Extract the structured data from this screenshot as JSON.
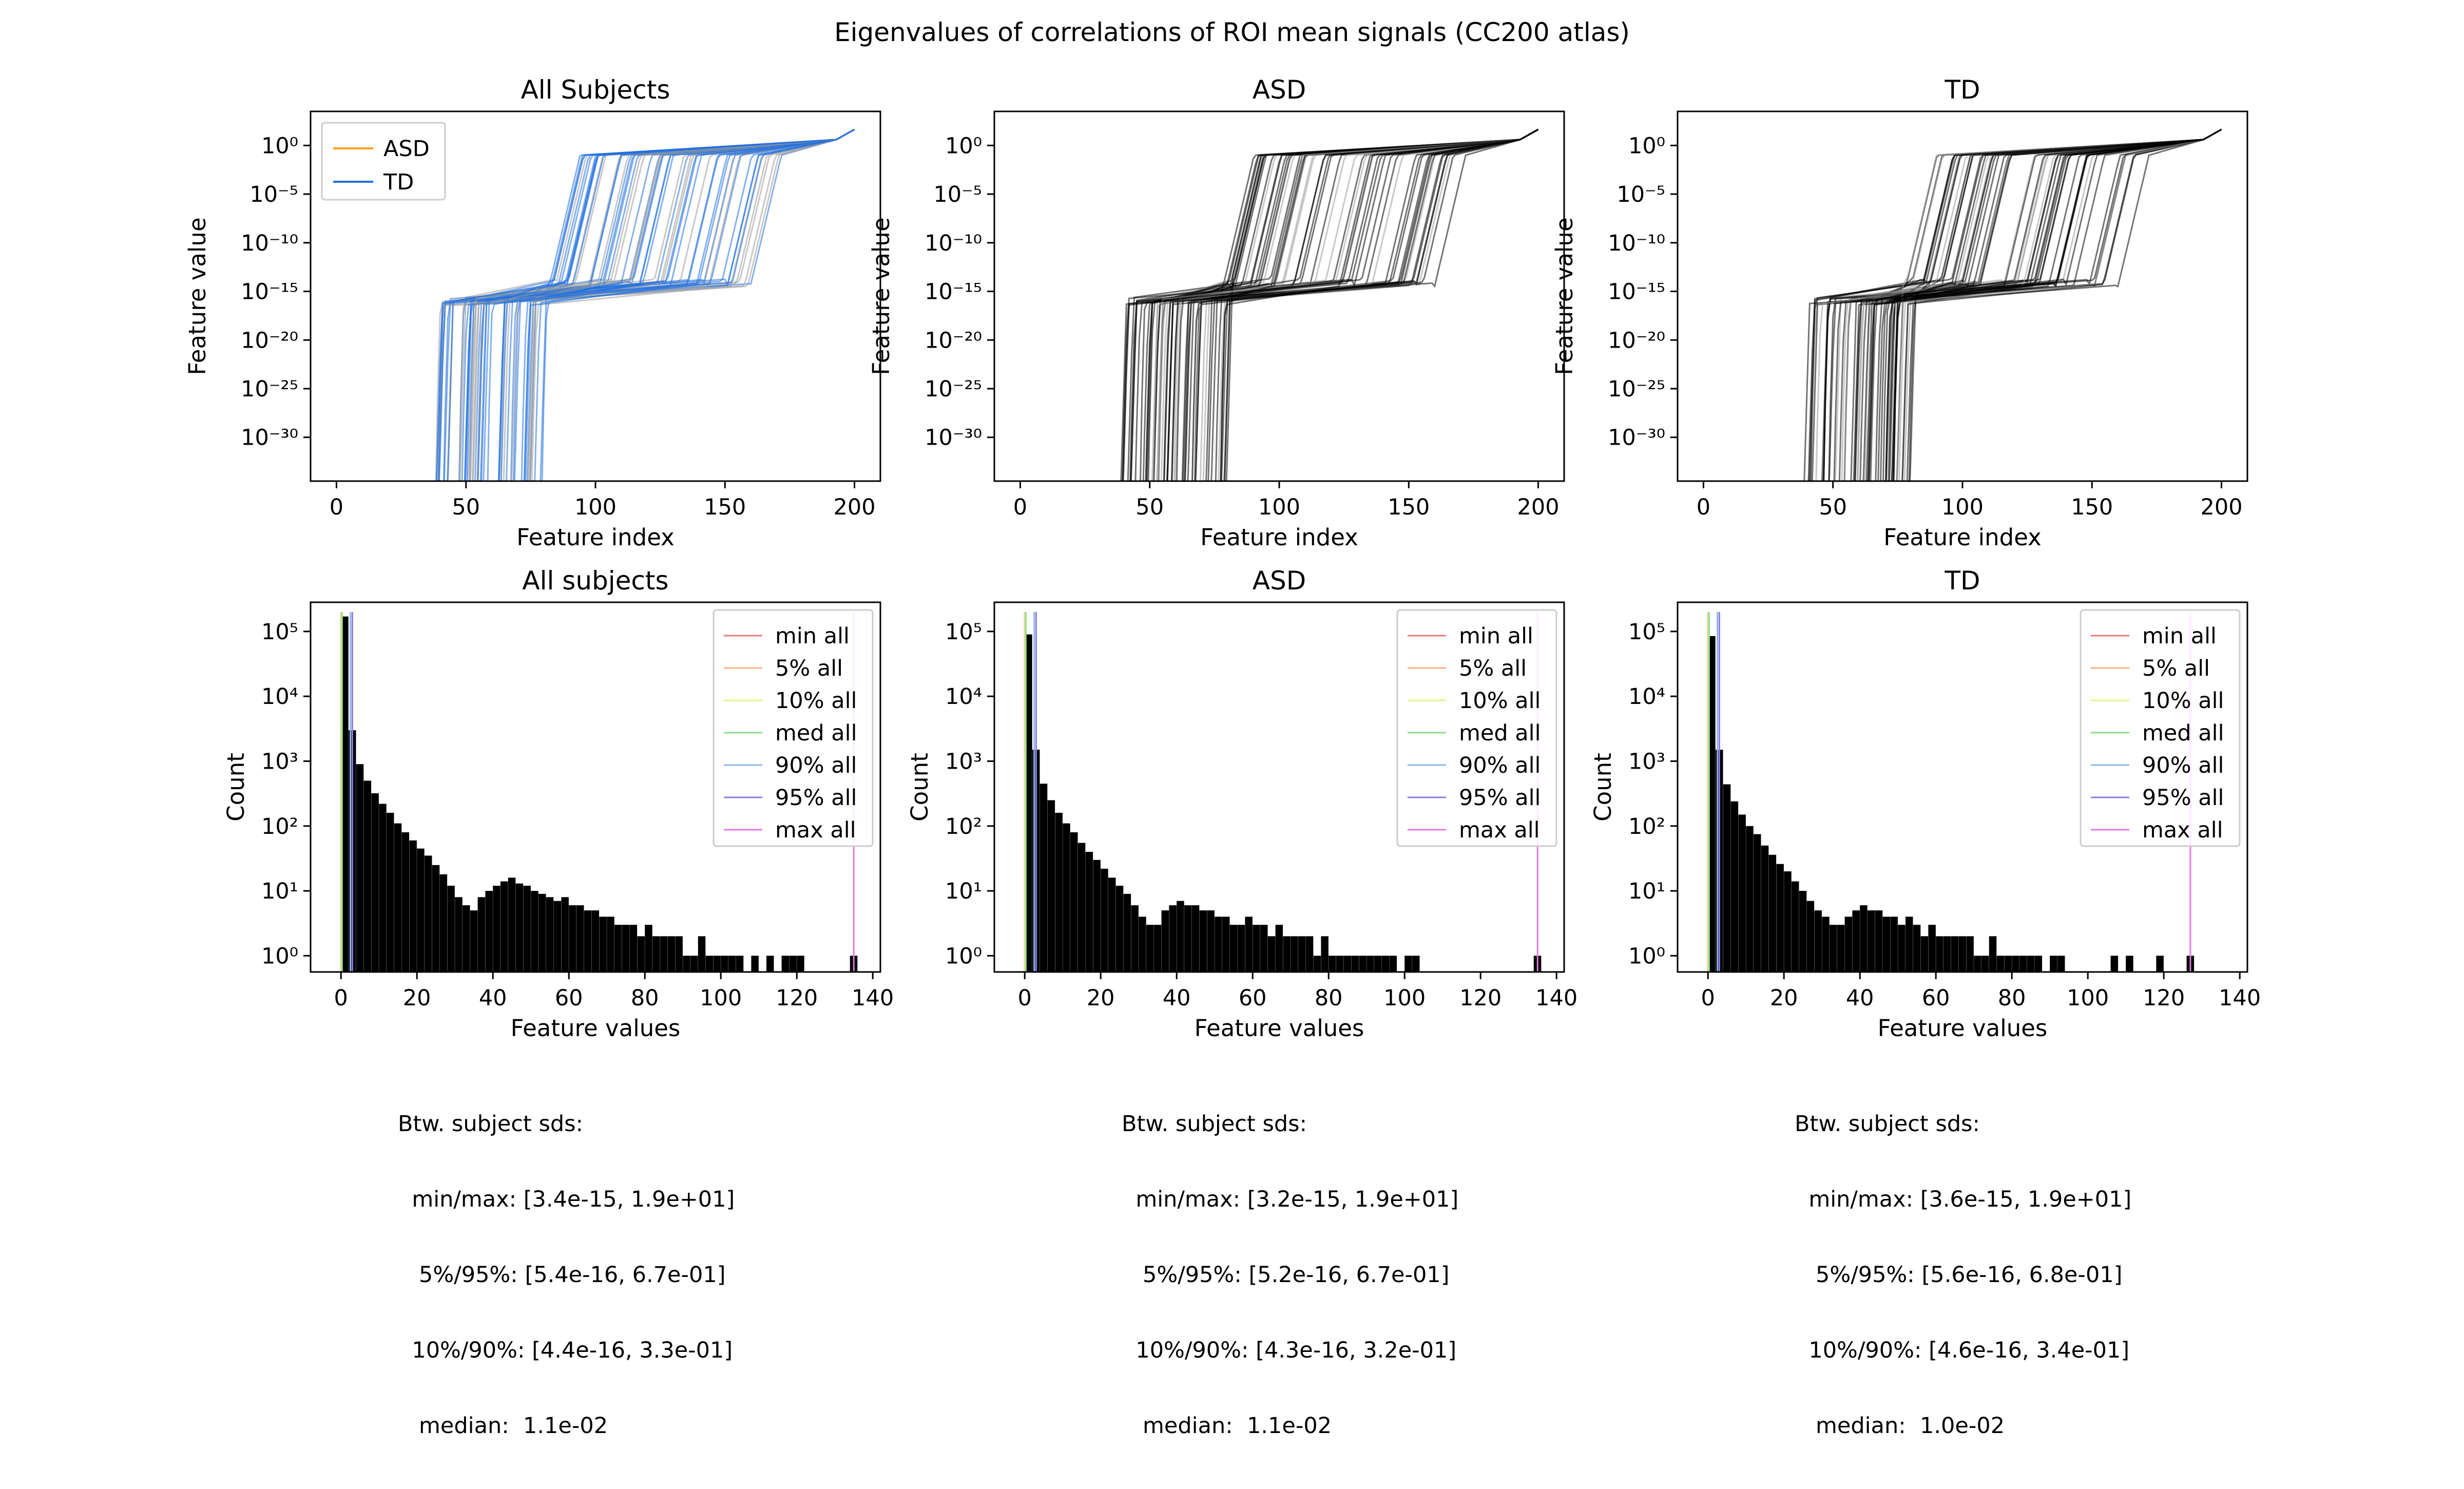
{
  "figure": {
    "title": "Eigenvalues of correlations of ROI mean signals (CC200 atlas)"
  },
  "chart_data": [
    {
      "type": "line",
      "title": "All Subjects",
      "xlabel": "Feature index",
      "ylabel": "Feature value",
      "xlim": [
        -10,
        210
      ],
      "ylim_log10": [
        -34.5,
        3.5
      ],
      "y_scale": "log",
      "x_ticks": [
        "0",
        "50",
        "100",
        "150",
        "200"
      ],
      "y_ticks": [
        "10⁰",
        "10⁻⁵",
        "10⁻¹⁰",
        "10⁻¹⁵",
        "10⁻²⁰",
        "10⁻²⁵",
        "10⁻³⁰"
      ],
      "legend_position": "top-left",
      "series": [
        {
          "name": "ASD",
          "color": "#ff9f1c"
        },
        {
          "name": "TD",
          "color": "#1f6fe0"
        }
      ],
      "curve_shape": {
        "description_points_x": [
          0,
          50,
          75,
          80,
          150,
          160,
          190,
          200
        ],
        "description_points_log10y": [
          -34,
          -15,
          -14.5,
          -14,
          -1,
          0,
          0.5,
          1.5
        ]
      }
    },
    {
      "type": "line",
      "title": "ASD",
      "xlabel": "Feature index",
      "ylabel": "Feature value",
      "xlim": [
        -10,
        210
      ],
      "ylim_log10": [
        -34.5,
        3.5
      ],
      "y_scale": "log",
      "x_ticks": [
        "0",
        "50",
        "100",
        "150",
        "200"
      ],
      "y_ticks": [
        "10⁰",
        "10⁻⁵",
        "10⁻¹⁰",
        "10⁻¹⁵",
        "10⁻²⁰",
        "10⁻²⁵",
        "10⁻³⁰"
      ],
      "series_color": "#000000"
    },
    {
      "type": "line",
      "title": "TD",
      "xlabel": "Feature index",
      "ylabel": "Feature value",
      "xlim": [
        -10,
        210
      ],
      "ylim_log10": [
        -34.5,
        3.5
      ],
      "y_scale": "log",
      "x_ticks": [
        "0",
        "50",
        "100",
        "150",
        "200"
      ],
      "y_ticks": [
        "10⁰",
        "10⁻⁵",
        "10⁻¹⁰",
        "10⁻¹⁵",
        "10⁻²⁰",
        "10⁻²⁵",
        "10⁻³⁰"
      ],
      "series_color": "#000000"
    },
    {
      "type": "bar",
      "title": "All subjects",
      "xlabel": "Feature values",
      "ylabel": "Count",
      "xlim": [
        -8,
        142
      ],
      "ylim_log10": [
        -0.25,
        5.45
      ],
      "y_scale": "log",
      "x_ticks": [
        "0",
        "20",
        "40",
        "60",
        "80",
        "100",
        "120",
        "140"
      ],
      "y_ticks": [
        "10⁵",
        "10⁴",
        "10³",
        "10²",
        "10¹",
        "10⁰"
      ],
      "legend_position": "top-right",
      "legend": [
        {
          "name": "min all",
          "color": "#e07a7a"
        },
        {
          "name": "5% all",
          "color": "#f4b183"
        },
        {
          "name": "10% all",
          "color": "#e6f08a"
        },
        {
          "name": "med all",
          "color": "#8fdc8f"
        },
        {
          "name": "90% all",
          "color": "#8fb4e6"
        },
        {
          "name": "95% all",
          "color": "#8a7fe6"
        },
        {
          "name": "max all",
          "color": "#e07ae0"
        }
      ],
      "markers": [
        {
          "name": "min all",
          "x": 0.0
        },
        {
          "name": "5% all",
          "x": 0.05
        },
        {
          "name": "10% all",
          "x": 0.1
        },
        {
          "name": "med all",
          "x": 0.3
        },
        {
          "name": "90% all",
          "x": 2.5
        },
        {
          "name": "95% all",
          "x": 3.0
        },
        {
          "name": "max all",
          "x": 135.0
        }
      ],
      "bins_x": [
        0,
        2,
        4,
        6,
        8,
        10,
        12,
        14,
        16,
        18,
        20,
        22,
        24,
        26,
        28,
        30,
        32,
        34,
        36,
        38,
        40,
        42,
        44,
        46,
        48,
        50,
        52,
        54,
        56,
        58,
        60,
        62,
        64,
        66,
        68,
        70,
        72,
        74,
        76,
        78,
        80,
        82,
        84,
        86,
        88,
        90,
        92,
        94,
        96,
        98,
        100,
        102,
        104,
        106,
        108,
        110,
        112,
        114,
        116,
        118,
        120,
        122,
        124,
        126,
        128,
        130,
        132,
        134
      ],
      "counts": [
        170000,
        3000,
        900,
        500,
        320,
        220,
        160,
        110,
        80,
        60,
        45,
        35,
        25,
        18,
        12,
        8,
        6,
        5,
        8,
        10,
        12,
        14,
        16,
        13,
        12,
        10,
        9,
        8,
        7,
        8,
        6,
        6,
        5,
        5,
        4,
        4,
        3,
        3,
        3,
        2,
        3,
        2,
        2,
        2,
        2,
        1,
        1,
        2,
        1,
        1,
        1,
        1,
        1,
        0,
        1,
        0,
        1,
        0,
        1,
        1,
        1,
        0,
        0,
        0,
        0,
        0,
        0,
        1
      ]
    },
    {
      "type": "bar",
      "title": "ASD",
      "xlabel": "Feature values",
      "ylabel": "Count",
      "xlim": [
        -8,
        142
      ],
      "ylim_log10": [
        -0.25,
        5.45
      ],
      "y_scale": "log",
      "x_ticks": [
        "0",
        "20",
        "40",
        "60",
        "80",
        "100",
        "120",
        "140"
      ],
      "y_ticks": [
        "10⁵",
        "10⁴",
        "10³",
        "10²",
        "10¹",
        "10⁰"
      ],
      "legend_position": "top-right",
      "legend": [
        {
          "name": "min all",
          "color": "#e07a7a"
        },
        {
          "name": "5% all",
          "color": "#f4b183"
        },
        {
          "name": "10% all",
          "color": "#e6f08a"
        },
        {
          "name": "med all",
          "color": "#8fdc8f"
        },
        {
          "name": "90% all",
          "color": "#8fb4e6"
        },
        {
          "name": "95% all",
          "color": "#8a7fe6"
        },
        {
          "name": "max all",
          "color": "#e07ae0"
        }
      ],
      "markers": [
        {
          "name": "min all",
          "x": 0.0
        },
        {
          "name": "5% all",
          "x": 0.05
        },
        {
          "name": "10% all",
          "x": 0.1
        },
        {
          "name": "med all",
          "x": 0.3
        },
        {
          "name": "90% all",
          "x": 2.5
        },
        {
          "name": "95% all",
          "x": 3.0
        },
        {
          "name": "max all",
          "x": 135.0
        }
      ],
      "bins_x": [
        0,
        2,
        4,
        6,
        8,
        10,
        12,
        14,
        16,
        18,
        20,
        22,
        24,
        26,
        28,
        30,
        32,
        34,
        36,
        38,
        40,
        42,
        44,
        46,
        48,
        50,
        52,
        54,
        56,
        58,
        60,
        62,
        64,
        66,
        68,
        70,
        72,
        74,
        76,
        78,
        80,
        82,
        84,
        86,
        88,
        90,
        92,
        94,
        96,
        98,
        100,
        102,
        104,
        106,
        108,
        110,
        112,
        114,
        116,
        118,
        120,
        122,
        124,
        126,
        128,
        130,
        132,
        134
      ],
      "counts": [
        90000,
        1500,
        450,
        250,
        160,
        110,
        80,
        55,
        40,
        30,
        22,
        16,
        12,
        9,
        6,
        4,
        3,
        3,
        5,
        6,
        7,
        6,
        6,
        5,
        5,
        4,
        4,
        3,
        3,
        4,
        3,
        3,
        2,
        3,
        2,
        2,
        2,
        2,
        1,
        2,
        1,
        1,
        1,
        1,
        1,
        1,
        1,
        1,
        1,
        0,
        1,
        1,
        0,
        0,
        0,
        0,
        0,
        0,
        0,
        0,
        0,
        0,
        0,
        0,
        0,
        0,
        0,
        1
      ]
    },
    {
      "type": "bar",
      "title": "TD",
      "xlabel": "Feature values",
      "ylabel": "Count",
      "xlim": [
        -8,
        142
      ],
      "ylim_log10": [
        -0.25,
        5.45
      ],
      "y_scale": "log",
      "x_ticks": [
        "0",
        "20",
        "40",
        "60",
        "80",
        "100",
        "120",
        "140"
      ],
      "y_ticks": [
        "10⁵",
        "10⁴",
        "10³",
        "10²",
        "10¹",
        "10⁰"
      ],
      "legend_position": "top-right",
      "legend": [
        {
          "name": "min all",
          "color": "#e07a7a"
        },
        {
          "name": "5% all",
          "color": "#f4b183"
        },
        {
          "name": "10% all",
          "color": "#e6f08a"
        },
        {
          "name": "med all",
          "color": "#8fdc8f"
        },
        {
          "name": "90% all",
          "color": "#8fb4e6"
        },
        {
          "name": "95% all",
          "color": "#8a7fe6"
        },
        {
          "name": "max all",
          "color": "#e07ae0"
        }
      ],
      "markers": [
        {
          "name": "min all",
          "x": 0.0
        },
        {
          "name": "5% all",
          "x": 0.05
        },
        {
          "name": "10% all",
          "x": 0.1
        },
        {
          "name": "med all",
          "x": 0.3
        },
        {
          "name": "90% all",
          "x": 2.5
        },
        {
          "name": "95% all",
          "x": 3.0
        },
        {
          "name": "max all",
          "x": 127.0
        }
      ],
      "bins_x": [
        0,
        2,
        4,
        6,
        8,
        10,
        12,
        14,
        16,
        18,
        20,
        22,
        24,
        26,
        28,
        30,
        32,
        34,
        36,
        38,
        40,
        42,
        44,
        46,
        48,
        50,
        52,
        54,
        56,
        58,
        60,
        62,
        64,
        66,
        68,
        70,
        72,
        74,
        76,
        78,
        80,
        82,
        84,
        86,
        88,
        90,
        92,
        94,
        96,
        98,
        100,
        102,
        104,
        106,
        108,
        110,
        112,
        114,
        116,
        118,
        120,
        122,
        124,
        126
      ],
      "counts": [
        85000,
        1500,
        440,
        240,
        150,
        100,
        75,
        50,
        36,
        26,
        20,
        14,
        10,
        7,
        5,
        4,
        3,
        3,
        4,
        5,
        6,
        5,
        5,
        4,
        4,
        3,
        4,
        3,
        2,
        3,
        2,
        2,
        2,
        2,
        2,
        1,
        1,
        2,
        1,
        1,
        1,
        1,
        1,
        1,
        0,
        1,
        1,
        0,
        0,
        0,
        0,
        0,
        0,
        1,
        0,
        1,
        0,
        0,
        0,
        1,
        0,
        0,
        0,
        1
      ]
    }
  ],
  "stats": [
    {
      "heading": "Btw. subject sds:",
      "line1": "  min/max: [3.4e-15, 1.9e+01]",
      "line2": "   5%/95%: [5.4e-16, 6.7e-01]",
      "line3": "  10%/90%: [4.4e-16, 3.3e-01]",
      "line4": "   median:  1.1e-02"
    },
    {
      "heading": "Btw. subject sds:",
      "line1": "  min/max: [3.2e-15, 1.9e+01]",
      "line2": "   5%/95%: [5.2e-16, 6.7e-01]",
      "line3": "  10%/90%: [4.3e-16, 3.2e-01]",
      "line4": "   median:  1.1e-02"
    },
    {
      "heading": "Btw. subject sds:",
      "line1": "  min/max: [3.6e-15, 1.9e+01]",
      "line2": "   5%/95%: [5.6e-16, 6.8e-01]",
      "line3": "  10%/90%: [4.6e-16, 3.4e-01]",
      "line4": "   median:  1.0e-02"
    }
  ]
}
